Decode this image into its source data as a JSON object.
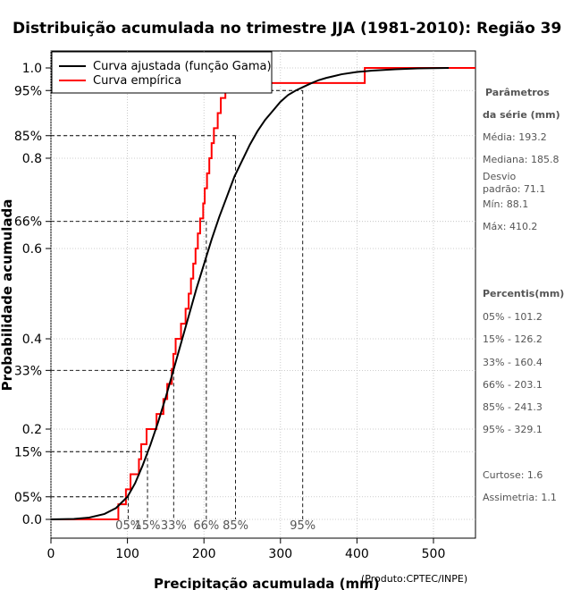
{
  "chart_data": {
    "type": "line",
    "title": "Distribuição acumulada no trimestre JJA (1981-2010): Região 39",
    "xlabel": "Precipitação acumulada (mm)",
    "ylabel": "Probabilidade acumulada",
    "credit": "(Produto:CPTEC/INPE)",
    "xlim": [
      0,
      560
    ],
    "ylim": [
      0,
      1
    ],
    "x_ticks": [
      0,
      100,
      200,
      300,
      400,
      500
    ],
    "y_ticks": [
      {
        "value": 0.0,
        "label": "0.0"
      },
      {
        "value": 0.05,
        "label": "05%"
      },
      {
        "value": 0.15,
        "label": "15%"
      },
      {
        "value": 0.2,
        "label": "0.2"
      },
      {
        "value": 0.33,
        "label": "33%"
      },
      {
        "value": 0.4,
        "label": "0.4"
      },
      {
        "value": 0.6,
        "label": "0.6"
      },
      {
        "value": 0.66,
        "label": "66%"
      },
      {
        "value": 0.8,
        "label": "0.8"
      },
      {
        "value": 0.85,
        "label": "85%"
      },
      {
        "value": 0.95,
        "label": "95%"
      },
      {
        "value": 1.0,
        "label": "1.0"
      }
    ],
    "legend": {
      "position": "top-left",
      "entries": [
        {
          "label": "Curva ajustada (função Gama)",
          "color": "#000000"
        },
        {
          "label": "Curva empírica",
          "color": "#ff0000"
        }
      ]
    },
    "series": [
      {
        "name": "Curva ajustada (função Gama)",
        "color": "#000000",
        "x": [
          0,
          30,
          50,
          70,
          85,
          100,
          110,
          120,
          130,
          140,
          150,
          160,
          170,
          180,
          190,
          200,
          210,
          220,
          230,
          240,
          250,
          260,
          270,
          280,
          290,
          300,
          310,
          320,
          330,
          340,
          350,
          360,
          370,
          380,
          400,
          420,
          450,
          480,
          520
        ],
        "y": [
          0,
          0.001,
          0.004,
          0.012,
          0.025,
          0.05,
          0.08,
          0.12,
          0.165,
          0.215,
          0.27,
          0.33,
          0.39,
          0.45,
          0.51,
          0.565,
          0.62,
          0.67,
          0.715,
          0.76,
          0.795,
          0.83,
          0.86,
          0.885,
          0.905,
          0.925,
          0.94,
          0.95,
          0.958,
          0.966,
          0.973,
          0.978,
          0.982,
          0.986,
          0.991,
          0.994,
          0.997,
          0.999,
          1.0
        ]
      },
      {
        "name": "Curva empírica",
        "color": "#ff0000",
        "x": [
          88.1,
          98,
          104,
          115,
          118,
          125,
          138,
          147,
          152,
          158,
          160,
          163,
          170,
          176,
          180,
          183,
          186,
          189,
          192,
          195,
          199,
          201,
          204,
          207,
          210,
          213,
          218,
          222,
          228,
          253,
          273,
          285,
          315,
          344,
          410.2
        ],
        "y": [
          0.0333,
          0.0667,
          0.1,
          0.1333,
          0.1667,
          0.2,
          0.2333,
          0.2667,
          0.3,
          0.3333,
          0.3667,
          0.4,
          0.4333,
          0.4667,
          0.5,
          0.5333,
          0.5667,
          0.6,
          0.6333,
          0.6667,
          0.7,
          0.7333,
          0.7667,
          0.8,
          0.8333,
          0.8667,
          0.9,
          0.9333,
          0.9667,
          0.9667,
          0.9667,
          0.9667,
          0.9667,
          0.9667,
          1.0
        ]
      }
    ],
    "percentile_markers": [
      {
        "label": "05%",
        "prob": 0.05,
        "value": 101.2
      },
      {
        "label": "15%",
        "prob": 0.15,
        "value": 126.2
      },
      {
        "label": "33%",
        "prob": 0.33,
        "value": 160.4
      },
      {
        "label": "66%",
        "prob": 0.66,
        "value": 203.1
      },
      {
        "label": "85%",
        "prob": 0.85,
        "value": 241.3
      },
      {
        "label": "95%",
        "prob": 0.95,
        "value": 329.1
      }
    ],
    "x_tick_marker_labels": [
      "05%",
      "15%",
      "33%",
      "66%",
      "85%",
      "95%"
    ]
  },
  "side_panel": {
    "params_header_1": "Parâmetros",
    "params_header_2": "da série (mm)",
    "media": "Média: 193.2",
    "mediana": "Mediana: 185.8",
    "desvio_1": "Desvio",
    "desvio_2": "padrão: 71.1",
    "min": "Mín: 88.1",
    "max": "Máx: 410.2",
    "percentis_header": "Percentis(mm)",
    "percentis": [
      "05% - 101.2",
      "15% - 126.2",
      "33% - 160.4",
      "66% - 203.1",
      "85% - 241.3",
      "95% - 329.1"
    ],
    "curtose": "Curtose: 1.6",
    "assimetria": "Assimetria: 1.1"
  }
}
